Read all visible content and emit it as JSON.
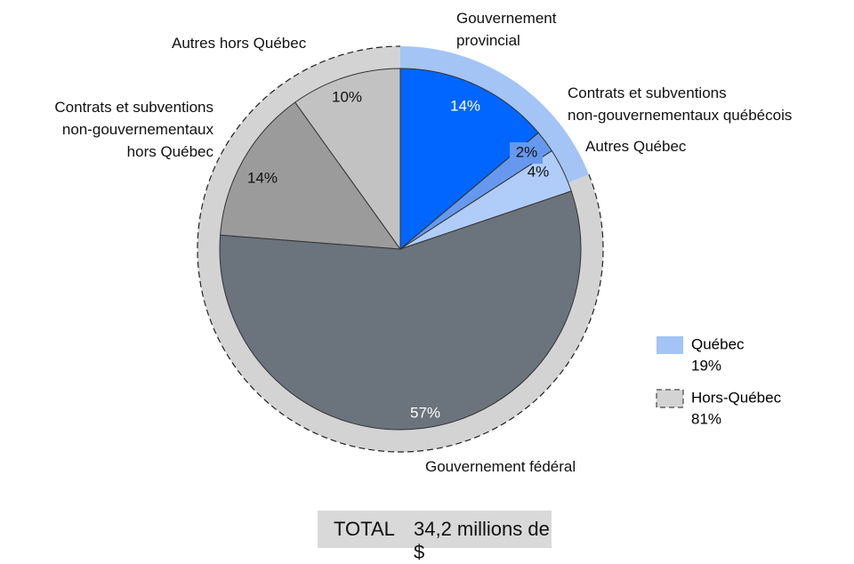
{
  "chart_data": {
    "type": "pie",
    "categories": [
      "Gouvernement\nprovincial",
      "Contrats et subventions\nnon-gouvernementaux québécois",
      "Autres Québec",
      "Gouvernement fédéral",
      "Contrats et subventions\nnon-gouvernementaux\nhors Québec",
      "Autres hors Québec"
    ],
    "values": [
      14,
      2,
      4,
      57,
      14,
      10
    ],
    "value_labels": [
      "14%",
      "2%",
      "4%",
      "57%",
      "14%",
      "10%"
    ],
    "colors": [
      "#0066ff",
      "#6699ee",
      "#b0cdfa",
      "#6b737c",
      "#9b9b9b",
      "#c2c2c2"
    ],
    "ring": {
      "categories": [
        "Québec",
        "Hors-Québec"
      ],
      "values": [
        19,
        81
      ],
      "value_labels": [
        "19%",
        "81%"
      ],
      "colors": [
        "#a3c4f5",
        "#d3d3d3"
      ]
    },
    "total": {
      "label": "TOTAL",
      "value": "34,2 millions de $"
    }
  }
}
